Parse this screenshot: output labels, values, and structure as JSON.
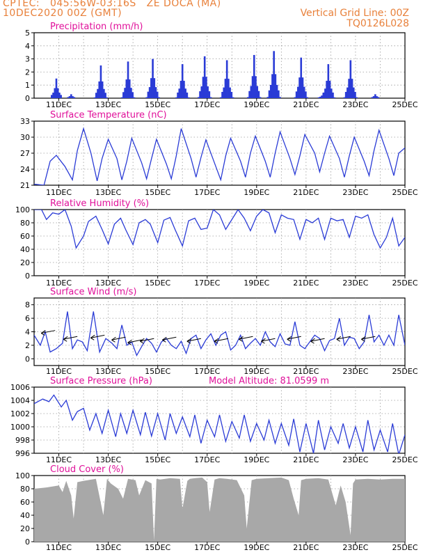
{
  "header": {
    "line1": "CPTEC:   045:56W-03:16S   ZE DOCA (MA)",
    "line2": "10DEC2020 00Z (GMT)",
    "grid_note": "Vertical Grid Line: 00Z",
    "code": "TQ0126L028"
  },
  "colors": {
    "header": "#e8803a",
    "title": "#e0109a",
    "series": "#2a3bd6",
    "cloud": "#a8a8a8",
    "arrow": "#000000"
  },
  "x_axis": {
    "start_day": 10,
    "end_day": 25,
    "tick_labels": [
      "11DEC",
      "13DEC",
      "15DEC",
      "17DEC",
      "19DEC",
      "21DEC",
      "23DEC",
      "25DEC"
    ],
    "tick_days": [
      11,
      13,
      15,
      17,
      19,
      21,
      23,
      25
    ]
  },
  "chart_data": [
    {
      "type": "bar",
      "title": "Precipitation (mm/h)",
      "ylim": [
        0,
        5
      ],
      "yticks": [
        0,
        1,
        2,
        3,
        4,
        5
      ],
      "bursts": [
        [
          10.9,
          1.5
        ],
        [
          11.5,
          0.3
        ],
        [
          12.7,
          2.5
        ],
        [
          13.8,
          2.8
        ],
        [
          14.8,
          3.0
        ],
        [
          16.0,
          2.6
        ],
        [
          16.9,
          3.2
        ],
        [
          17.8,
          2.9
        ],
        [
          18.9,
          3.3
        ],
        [
          19.7,
          3.6
        ],
        [
          20.8,
          3.1
        ],
        [
          21.7,
          0.4
        ],
        [
          21.9,
          2.6
        ],
        [
          22.8,
          2.9
        ],
        [
          23.8,
          0.3
        ]
      ]
    },
    {
      "type": "line",
      "title": "Surface Temperature (nC)",
      "ylim": [
        21,
        33
      ],
      "yticks": [
        21,
        24,
        27,
        30,
        33
      ],
      "x": [
        10.0,
        10.4,
        10.65,
        10.9,
        11.25,
        11.55,
        11.75,
        12.0,
        12.3,
        12.55,
        12.75,
        13.0,
        13.35,
        13.55,
        13.75,
        13.95,
        14.35,
        14.55,
        14.75,
        14.95,
        15.35,
        15.55,
        15.75,
        15.95,
        16.35,
        16.55,
        16.75,
        16.95,
        17.35,
        17.55,
        17.75,
        17.95,
        18.35,
        18.55,
        18.75,
        18.95,
        19.35,
        19.55,
        19.75,
        19.95,
        20.35,
        20.55,
        20.75,
        20.95,
        21.35,
        21.55,
        21.75,
        21.95,
        22.35,
        22.55,
        22.75,
        22.95,
        23.35,
        23.55,
        23.75,
        23.95,
        24.35,
        24.55,
        24.75,
        25.0
      ],
      "values": [
        21.2,
        21.0,
        25.5,
        26.6,
        24.5,
        22.0,
        27.5,
        31.6,
        27.0,
        21.8,
        26.0,
        29.6,
        26.0,
        22.0,
        25.5,
        29.8,
        25.2,
        22.2,
        26.0,
        29.6,
        25.0,
        22.2,
        26.5,
        31.6,
        26.0,
        22.5,
        26.2,
        29.5,
        24.5,
        22.0,
        26.5,
        29.8,
        25.5,
        22.5,
        27.0,
        30.2,
        25.5,
        22.5,
        27.0,
        31.0,
        26.0,
        23.0,
        26.5,
        30.5,
        27.0,
        23.5,
        27.0,
        30.2,
        26.0,
        22.5,
        26.5,
        30.0,
        25.5,
        22.8,
        27.5,
        31.3,
        26.0,
        22.8,
        27.0,
        28.0
      ]
    },
    {
      "type": "line",
      "title": "Relative Humidity (%)",
      "ylim": [
        0,
        100
      ],
      "yticks": [
        0,
        20,
        40,
        60,
        80,
        100
      ],
      "x": [
        10.0,
        10.3,
        10.5,
        10.75,
        11.0,
        11.25,
        11.5,
        11.7,
        12.0,
        12.2,
        12.5,
        12.75,
        13.0,
        13.25,
        13.5,
        13.7,
        14.0,
        14.25,
        14.5,
        14.7,
        15.0,
        15.25,
        15.5,
        15.7,
        16.0,
        16.25,
        16.5,
        16.75,
        17.0,
        17.25,
        17.5,
        17.75,
        18.0,
        18.25,
        18.5,
        18.75,
        19.0,
        19.25,
        19.5,
        19.75,
        20.0,
        20.25,
        20.5,
        20.75,
        21.0,
        21.25,
        21.5,
        21.75,
        22.0,
        22.25,
        22.5,
        22.75,
        23.0,
        23.25,
        23.5,
        23.75,
        24.0,
        24.25,
        24.5,
        24.75,
        25.0
      ],
      "values": [
        100,
        100,
        85,
        95,
        93,
        100,
        75,
        42,
        60,
        82,
        90,
        70,
        48,
        78,
        87,
        70,
        47,
        80,
        85,
        78,
        50,
        84,
        88,
        70,
        45,
        83,
        87,
        70,
        72,
        100,
        92,
        70,
        85,
        100,
        87,
        68,
        90,
        100,
        95,
        65,
        92,
        87,
        85,
        55,
        85,
        80,
        87,
        55,
        87,
        83,
        85,
        58,
        90,
        87,
        92,
        62,
        42,
        58,
        87,
        45,
        58
      ]
    },
    {
      "type": "line",
      "title": "Surface Wind (m/s)",
      "ylim": [
        -1,
        9
      ],
      "yticks": [
        0,
        2,
        4,
        6,
        8
      ],
      "x": [
        10.0,
        10.25,
        10.45,
        10.65,
        10.9,
        11.15,
        11.35,
        11.55,
        11.75,
        11.95,
        12.15,
        12.4,
        12.65,
        12.9,
        13.15,
        13.35,
        13.55,
        13.75,
        13.95,
        14.15,
        14.35,
        14.55,
        14.75,
        14.95,
        15.15,
        15.35,
        15.55,
        15.75,
        15.95,
        16.15,
        16.35,
        16.55,
        16.75,
        16.95,
        17.15,
        17.35,
        17.55,
        17.75,
        17.95,
        18.15,
        18.35,
        18.55,
        18.75,
        18.95,
        19.15,
        19.35,
        19.55,
        19.75,
        19.95,
        20.15,
        20.35,
        20.55,
        20.75,
        20.95,
        21.15,
        21.35,
        21.55,
        21.75,
        21.95,
        22.15,
        22.35,
        22.55,
        22.75,
        22.95,
        23.15,
        23.35,
        23.55,
        23.75,
        23.95,
        24.15,
        24.35,
        24.55,
        24.75,
        25.0
      ],
      "values": [
        3.5,
        2.0,
        4.0,
        1.0,
        1.5,
        2.3,
        7.0,
        1.5,
        2.8,
        2.5,
        1.2,
        7.0,
        1.0,
        3.0,
        2.3,
        1.5,
        5.0,
        2.0,
        2.5,
        0.5,
        1.8,
        3.0,
        2.3,
        1.0,
        2.5,
        3.0,
        2.0,
        1.5,
        2.6,
        0.8,
        3.0,
        3.5,
        1.5,
        2.8,
        3.7,
        2.0,
        3.5,
        4.0,
        1.3,
        2.0,
        3.5,
        1.5,
        2.3,
        3.0,
        2.0,
        4.0,
        2.5,
        1.8,
        3.7,
        2.2,
        2.0,
        5.5,
        2.0,
        1.5,
        2.5,
        3.5,
        3.0,
        1.2,
        2.7,
        3.0,
        6.0,
        2.0,
        3.2,
        3.0,
        1.5,
        2.5,
        6.5,
        2.5,
        3.5,
        2.0,
        3.5,
        2.0,
        6.5,
        2.0
      ],
      "vectors": [
        [
          10.05,
          4.0
        ],
        [
          10.85,
          4.2
        ],
        [
          11.75,
          3.3
        ],
        [
          12.85,
          3.5
        ],
        [
          13.7,
          3.2
        ],
        [
          14.35,
          2.8
        ],
        [
          14.85,
          3.0
        ],
        [
          15.75,
          3.2
        ],
        [
          16.75,
          3.0
        ],
        [
          17.85,
          3.0
        ],
        [
          18.85,
          3.3
        ],
        [
          19.75,
          3.0
        ],
        [
          20.8,
          3.3
        ],
        [
          21.75,
          3.0
        ],
        [
          22.8,
          3.3
        ],
        [
          23.8,
          3.3
        ]
      ]
    },
    {
      "type": "line",
      "title": "Surface Pressure (hPa)",
      "annotation": "Model Altitude: 81.0599 m",
      "ylim": [
        996,
        1006
      ],
      "yticks": [
        996,
        998,
        1000,
        1002,
        1004,
        1006
      ],
      "x": [
        10.0,
        10.35,
        10.6,
        10.8,
        11.1,
        11.3,
        11.55,
        11.75,
        12.0,
        12.25,
        12.5,
        12.75,
        13.0,
        13.3,
        13.5,
        13.75,
        14.0,
        14.3,
        14.5,
        14.75,
        15.0,
        15.3,
        15.5,
        15.75,
        16.0,
        16.3,
        16.5,
        16.75,
        17.0,
        17.3,
        17.5,
        17.75,
        18.0,
        18.3,
        18.5,
        18.75,
        19.0,
        19.3,
        19.5,
        19.75,
        20.0,
        20.3,
        20.5,
        20.75,
        21.0,
        21.3,
        21.5,
        21.75,
        22.0,
        22.3,
        22.5,
        22.75,
        23.0,
        23.3,
        23.5,
        23.75,
        24.0,
        24.3,
        24.5,
        24.75,
        25.0
      ],
      "values": [
        1003.5,
        1004.2,
        1003.8,
        1004.8,
        1003.0,
        1004.0,
        1001.0,
        1002.3,
        1002.8,
        999.5,
        1002.0,
        999.0,
        1002.5,
        998.5,
        1002.0,
        999.0,
        1002.5,
        998.8,
        1002.2,
        998.6,
        1002.0,
        998.0,
        1002.0,
        999.0,
        1001.5,
        998.5,
        1001.8,
        997.5,
        1001.0,
        998.5,
        1001.8,
        997.8,
        1000.8,
        998.3,
        1001.8,
        997.8,
        1000.5,
        998.0,
        1001.0,
        997.5,
        1000.5,
        997.2,
        1001.2,
        996.2,
        1000.5,
        996.0,
        1001.0,
        996.5,
        1000.0,
        997.5,
        1000.5,
        996.8,
        1000.0,
        996.2,
        1001.0,
        996.5,
        999.5,
        996.2,
        1000.5,
        995.8,
        998.8
      ]
    },
    {
      "type": "area",
      "title": "Cloud Cover (%)",
      "ylim": [
        0,
        100
      ],
      "yticks": [
        0,
        20,
        40,
        60,
        80,
        100
      ],
      "x": [
        10.0,
        10.5,
        11.0,
        11.15,
        11.3,
        11.5,
        11.6,
        11.75,
        12.0,
        12.5,
        12.8,
        12.95,
        13.1,
        13.4,
        13.6,
        13.8,
        14.1,
        14.25,
        14.5,
        14.75,
        14.85,
        14.95,
        15.1,
        15.5,
        15.9,
        16.0,
        16.2,
        16.3,
        16.5,
        16.8,
        17.0,
        17.1,
        17.3,
        17.5,
        17.8,
        18.2,
        18.5,
        18.6,
        18.8,
        19.0,
        19.5,
        20.0,
        20.3,
        20.5,
        20.7,
        20.8,
        21.0,
        21.5,
        21.9,
        22.2,
        22.4,
        22.6,
        22.8,
        22.9,
        23.0,
        23.5,
        24.0,
        24.5,
        25.0
      ],
      "values": [
        80,
        82,
        85,
        75,
        92,
        70,
        35,
        90,
        92,
        95,
        40,
        95,
        88,
        80,
        65,
        95,
        93,
        70,
        93,
        88,
        2,
        95,
        94,
        96,
        95,
        50,
        92,
        95,
        96,
        97,
        90,
        45,
        94,
        96,
        95,
        93,
        70,
        20,
        93,
        95,
        96,
        97,
        93,
        65,
        40,
        93,
        95,
        96,
        94,
        55,
        85,
        60,
        10,
        88,
        94,
        95,
        94,
        95,
        95
      ]
    }
  ]
}
